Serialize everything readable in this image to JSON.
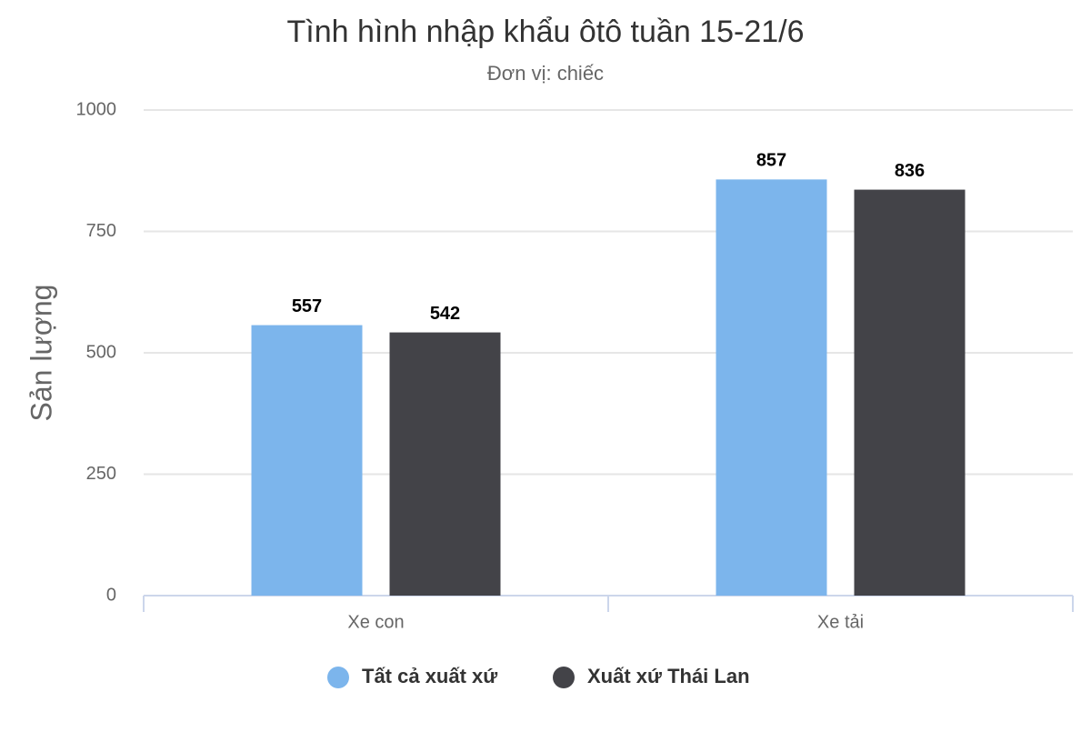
{
  "chart_data": {
    "type": "bar",
    "title": "Tình hình nhập khẩu ôtô tuần 15-21/6",
    "subtitle": "Đơn vị: chiếc",
    "y_label": "Sản lượng",
    "categories": [
      "Xe con",
      "Xe tải"
    ],
    "series": [
      {
        "name": "Tất cả xuất xứ",
        "color": "#7cb5ec",
        "values": [
          557,
          857
        ]
      },
      {
        "name": "Xuất xứ Thái Lan",
        "color": "#434348",
        "values": [
          542,
          836
        ]
      }
    ],
    "ylim": [
      0,
      1000
    ],
    "yticks": [
      0,
      250,
      500,
      750,
      1000
    ],
    "grid": true,
    "legend": "bottom"
  }
}
